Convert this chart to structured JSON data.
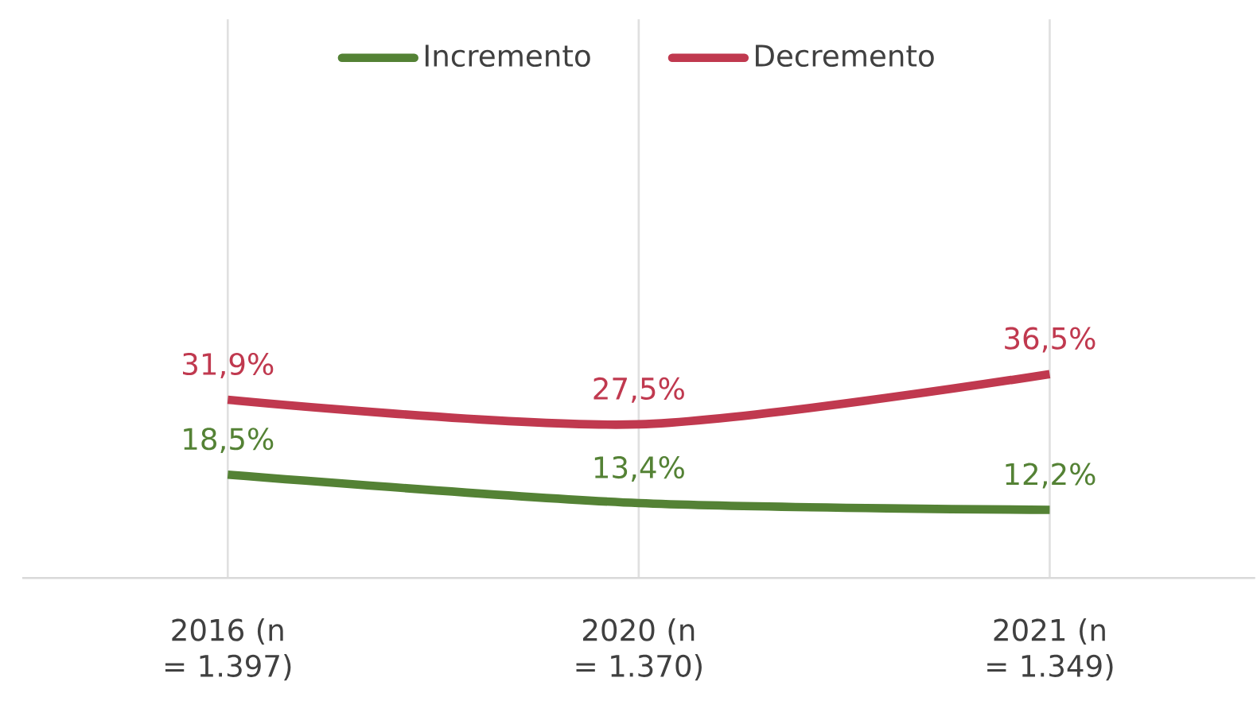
{
  "chart_data": {
    "type": "line",
    "categories": [
      "2016 (n = 1.397)",
      "2020 (n = 1.370)",
      "2021 (n = 1.349)"
    ],
    "series": [
      {
        "name": "Incremento",
        "color": "#548235",
        "values": [
          18.5,
          13.4,
          12.2
        ],
        "value_labels": [
          "18,5%",
          "13,4%",
          "12,2%"
        ]
      },
      {
        "name": "Decremento",
        "color": "#c0394f",
        "values": [
          31.9,
          27.5,
          36.5
        ],
        "value_labels": [
          "31,9%",
          "27,5%",
          "36,5%"
        ]
      }
    ],
    "ylim": [
      0,
      100
    ],
    "tick_labels": "x",
    "grid": "x",
    "legend": "top",
    "marker": "none",
    "line_style": "solid"
  }
}
